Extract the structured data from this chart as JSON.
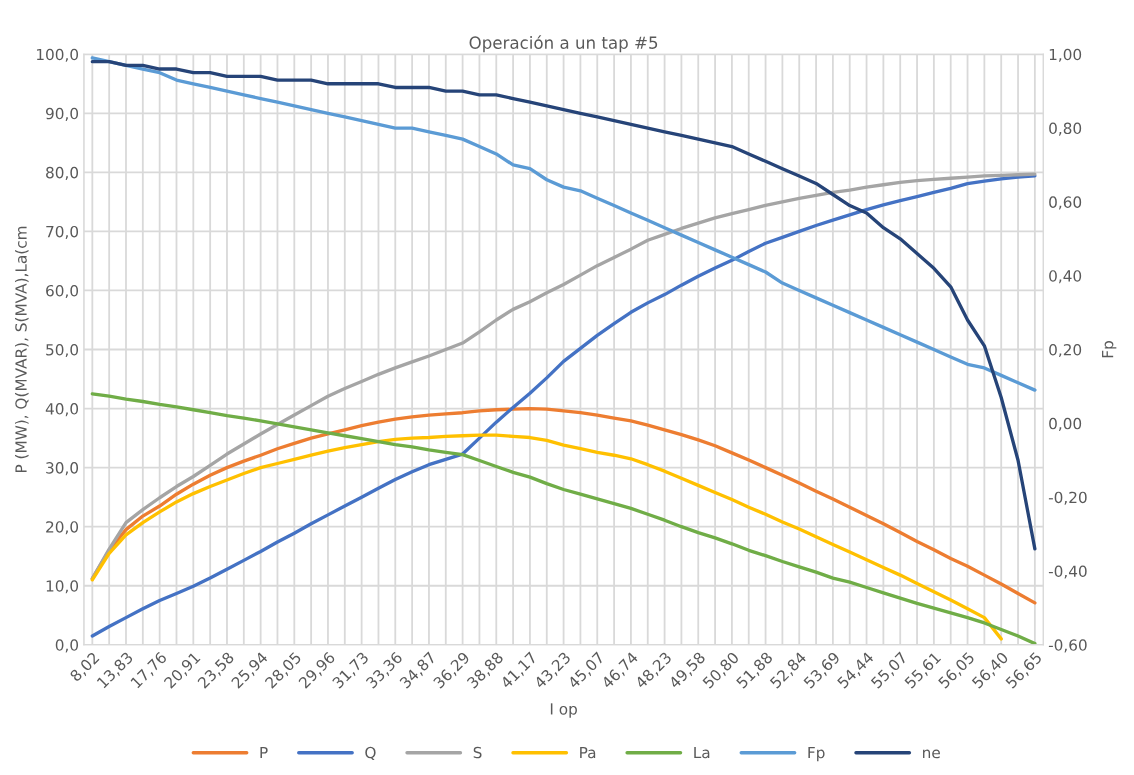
{
  "chart_data": {
    "type": "line",
    "title": "Operación a un tap #5",
    "xlabel": "I op",
    "ylabel": "P (MW), Q(MVAR), S(MVA),La(cm",
    "y2label": "Fp",
    "categories": [
      "8,02",
      null,
      "13,83",
      null,
      "17,76",
      null,
      "20,91",
      null,
      "23,58",
      null,
      "25,94",
      null,
      "28,05",
      null,
      "29,96",
      null,
      "31,73",
      null,
      "33,36",
      null,
      "34,87",
      null,
      "36,29",
      null,
      "38,88",
      null,
      "41,17",
      null,
      "43,23",
      null,
      "45,07",
      null,
      "46,74",
      null,
      "48,23",
      null,
      "49,58",
      null,
      "50,80",
      null,
      "51,88",
      null,
      "52,84",
      null,
      "53,69",
      null,
      "54,44",
      null,
      "55,07",
      null,
      "55,61",
      null,
      "56,05",
      null,
      "56,40",
      null,
      "56,65"
    ],
    "series": [
      {
        "name": "P",
        "color": "#ed7d31",
        "values": [
          11.2,
          16.0,
          19.5,
          21.8,
          23.5,
          25.5,
          27.2,
          28.7,
          30.0,
          31.1,
          32.1,
          33.2,
          34.1,
          35.0,
          35.7,
          36.4,
          37.1,
          37.7,
          38.2,
          38.6,
          38.9,
          39.1,
          39.3,
          39.6,
          39.8,
          39.9,
          40.0,
          39.9,
          39.6,
          39.3,
          38.9,
          38.4,
          37.9,
          37.2,
          36.4,
          35.6,
          34.7,
          33.7,
          32.5,
          31.3,
          30.0,
          28.7,
          27.4,
          26.0,
          24.7,
          23.3,
          21.9,
          20.5,
          19.0,
          17.5,
          16.1,
          14.6,
          13.3,
          11.8,
          10.3,
          8.7,
          7.1
        ]
      },
      {
        "name": "Q",
        "color": "#4472c4",
        "values": [
          1.5,
          3.1,
          4.6,
          6.1,
          7.5,
          8.7,
          9.9,
          11.3,
          12.8,
          14.3,
          15.8,
          17.4,
          18.9,
          20.5,
          22.0,
          23.5,
          25.0,
          26.5,
          28.0,
          29.3,
          30.5,
          31.4,
          32.3,
          35.0,
          37.7,
          40.2,
          42.6,
          45.2,
          48.0,
          50.2,
          52.4,
          54.4,
          56.3,
          57.9,
          59.3,
          60.9,
          62.4,
          63.8,
          65.1,
          66.6,
          68.0,
          69.0,
          70.0,
          71.0,
          71.9,
          72.8,
          73.7,
          74.5,
          75.2,
          75.9,
          76.6,
          77.3,
          78.1,
          78.5,
          78.9,
          79.2,
          79.4
        ]
      },
      {
        "name": "S",
        "color": "#a5a5a5",
        "values": [
          11.2,
          16.2,
          20.7,
          22.9,
          24.9,
          26.8,
          28.5,
          30.4,
          32.3,
          34.0,
          35.7,
          37.3,
          38.9,
          40.5,
          42.1,
          43.4,
          44.6,
          45.8,
          46.9,
          47.9,
          48.9,
          50.0,
          51.1,
          53.0,
          55.0,
          56.8,
          58.1,
          59.6,
          61.0,
          62.6,
          64.2,
          65.6,
          67.0,
          68.5,
          69.5,
          70.5,
          71.4,
          72.3,
          73.0,
          73.7,
          74.4,
          75.0,
          75.6,
          76.1,
          76.6,
          77.0,
          77.5,
          77.9,
          78.3,
          78.6,
          78.8,
          79.0,
          79.2,
          79.4,
          79.5,
          79.6,
          79.7
        ]
      },
      {
        "name": "Pa",
        "color": "#ffc000",
        "values": [
          11.0,
          15.5,
          18.6,
          20.7,
          22.5,
          24.2,
          25.6,
          26.8,
          27.9,
          29.0,
          30.0,
          30.7,
          31.4,
          32.1,
          32.8,
          33.4,
          33.9,
          34.4,
          34.8,
          35.0,
          35.1,
          35.3,
          35.4,
          35.5,
          35.5,
          35.3,
          35.1,
          34.6,
          33.8,
          33.2,
          32.6,
          32.1,
          31.5,
          30.5,
          29.4,
          28.2,
          27.0,
          25.8,
          24.6,
          23.3,
          22.1,
          20.8,
          19.6,
          18.3,
          17.0,
          15.7,
          14.4,
          13.1,
          11.8,
          10.4,
          9.0,
          7.6,
          6.1,
          4.6,
          1.0,
          null,
          null
        ]
      },
      {
        "name": "La",
        "color": "#70ad47",
        "values": [
          42.5,
          42.1,
          41.6,
          41.2,
          40.7,
          40.3,
          39.8,
          39.3,
          38.8,
          38.4,
          37.9,
          37.4,
          36.9,
          36.4,
          35.9,
          35.4,
          34.9,
          34.4,
          33.9,
          33.5,
          33.0,
          32.6,
          32.2,
          31.2,
          30.2,
          29.2,
          28.4,
          27.3,
          26.3,
          25.5,
          24.7,
          23.9,
          23.1,
          22.1,
          21.1,
          20.0,
          19.0,
          18.1,
          17.1,
          16.0,
          15.1,
          14.1,
          13.2,
          12.3,
          11.3,
          10.6,
          9.7,
          8.8,
          7.9,
          7.0,
          6.2,
          5.4,
          4.6,
          3.7,
          2.6,
          1.5,
          0.2
        ]
      },
      {
        "name": "Fp",
        "color": "#5b9bd5",
        "axis": "y2",
        "values": [
          0.99,
          0.98,
          0.97,
          0.96,
          0.95,
          0.93,
          0.92,
          0.91,
          0.9,
          0.89,
          0.88,
          0.87,
          0.86,
          0.85,
          0.84,
          0.83,
          0.82,
          0.81,
          0.8,
          0.8,
          0.79,
          0.78,
          0.77,
          0.75,
          0.73,
          0.7,
          0.69,
          0.66,
          0.64,
          0.63,
          0.61,
          0.59,
          0.57,
          0.55,
          0.53,
          0.51,
          0.49,
          0.47,
          0.45,
          0.43,
          0.41,
          0.38,
          0.36,
          0.34,
          0.32,
          0.3,
          0.28,
          0.26,
          0.24,
          0.22,
          0.2,
          0.18,
          0.16,
          0.15,
          0.13,
          0.11,
          0.09
        ]
      },
      {
        "name": "ne",
        "color": "#264478",
        "axis": "y2",
        "values": [
          0.98,
          0.98,
          0.97,
          0.97,
          0.96,
          0.96,
          0.95,
          0.95,
          0.94,
          0.94,
          0.94,
          0.93,
          0.93,
          0.93,
          0.92,
          0.92,
          0.92,
          0.92,
          0.91,
          0.91,
          0.91,
          0.9,
          0.9,
          0.89,
          0.89,
          0.88,
          0.87,
          0.86,
          0.85,
          0.84,
          0.83,
          0.82,
          0.81,
          0.8,
          0.79,
          0.78,
          0.77,
          0.76,
          0.75,
          0.73,
          0.71,
          0.69,
          0.67,
          0.65,
          0.62,
          0.59,
          0.57,
          0.53,
          0.5,
          0.46,
          0.42,
          0.37,
          0.28,
          0.21,
          0.07,
          -0.1,
          -0.34
        ]
      }
    ],
    "ylim": [
      0,
      100
    ],
    "yticks": [
      {
        "value": 0,
        "label": "0,0"
      },
      {
        "value": 10,
        "label": "10,0"
      },
      {
        "value": 20,
        "label": "20,0"
      },
      {
        "value": 30,
        "label": "30,0"
      },
      {
        "value": 40,
        "label": "40,0"
      },
      {
        "value": 50,
        "label": "50,0"
      },
      {
        "value": 60,
        "label": "60,0"
      },
      {
        "value": 70,
        "label": "70,0"
      },
      {
        "value": 80,
        "label": "80,0"
      },
      {
        "value": 90,
        "label": "90,0"
      },
      {
        "value": 100,
        "label": "100,0"
      }
    ],
    "y2lim": [
      -0.6,
      1.0
    ],
    "y2ticks": [
      {
        "value": -0.6,
        "label": "-0,60"
      },
      {
        "value": -0.4,
        "label": "-0,40"
      },
      {
        "value": -0.2,
        "label": "-0,20"
      },
      {
        "value": 0,
        "label": "0,00"
      },
      {
        "value": 0.2,
        "label": "0,20"
      },
      {
        "value": 0.4,
        "label": "0,40"
      },
      {
        "value": 0.6,
        "label": "0,60"
      },
      {
        "value": 0.8,
        "label": "0,80"
      },
      {
        "value": 1.0,
        "label": "1,00"
      }
    ],
    "grid": true,
    "legend": "bottom",
    "marker": "none",
    "line_style": "solid"
  }
}
